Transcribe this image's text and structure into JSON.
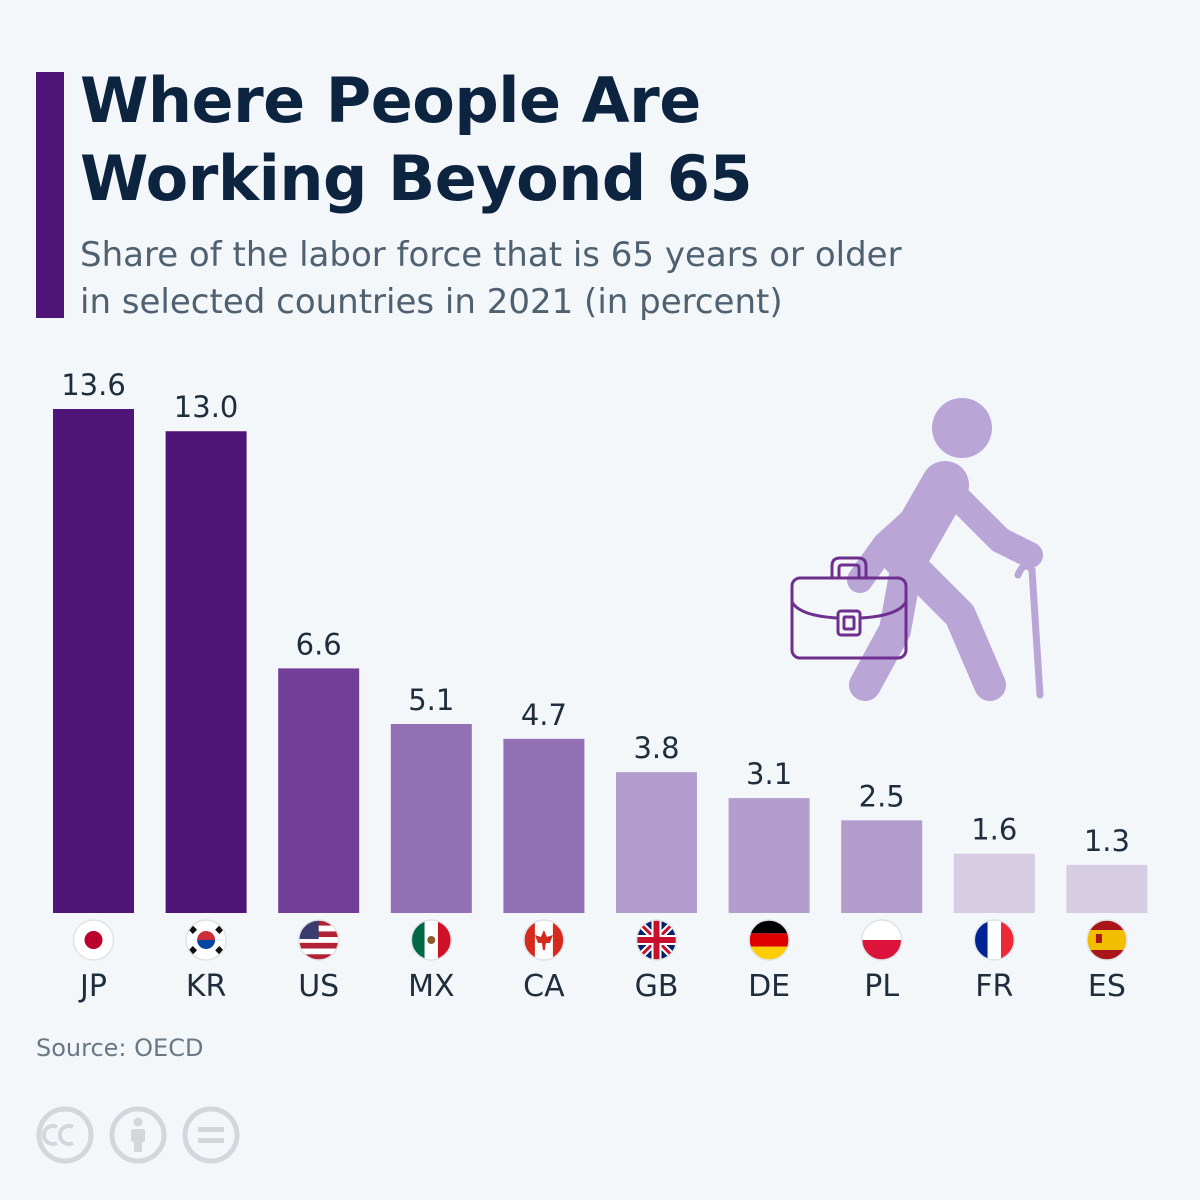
{
  "header": {
    "title_line1": "Where People Are",
    "title_line2": "Working Beyond 65",
    "subtitle_line1": "Share of the labor force that is 65 years or older",
    "subtitle_line2": "in selected countries in 2021 (in percent)"
  },
  "footer": {
    "source": "Source: OECD",
    "license_icons": [
      "cc-icon",
      "attribution-icon",
      "no-derivatives-icon"
    ]
  },
  "illustration": {
    "icon": "elderly-person-with-cane-and-briefcase-icon",
    "figure_color": "#b9a5d6",
    "briefcase_color": "#6e2f8e"
  },
  "chart_data": {
    "type": "bar",
    "title": "Where People Are Working Beyond 65",
    "subtitle": "Share of the labor force that is 65 years or older in selected countries in 2021 (in percent)",
    "categories": [
      "JP",
      "KR",
      "US",
      "MX",
      "CA",
      "GB",
      "DE",
      "PL",
      "FR",
      "ES"
    ],
    "values": [
      13.6,
      13.0,
      6.6,
      5.1,
      4.7,
      3.8,
      3.1,
      2.5,
      1.6,
      1.3
    ],
    "value_labels": [
      "13.6",
      "13.0",
      "6.6",
      "5.1",
      "4.7",
      "3.8",
      "3.1",
      "2.5",
      "1.6",
      "1.3"
    ],
    "colors": [
      "#4f1578",
      "#4f1578",
      "#713e98",
      "#9370b3",
      "#9370b3",
      "#b39dcc",
      "#b39dcc",
      "#b39dcc",
      "#d6cce4",
      "#d6cce4"
    ],
    "flags": [
      "flag-japan-icon",
      "flag-south-korea-icon",
      "flag-usa-icon",
      "flag-mexico-icon",
      "flag-canada-icon",
      "flag-uk-icon",
      "flag-germany-icon",
      "flag-poland-icon",
      "flag-france-icon",
      "flag-spain-icon"
    ],
    "ylim": [
      0,
      13.6
    ],
    "grid": false,
    "legend": "none",
    "xlabel": "",
    "ylabel": ""
  }
}
